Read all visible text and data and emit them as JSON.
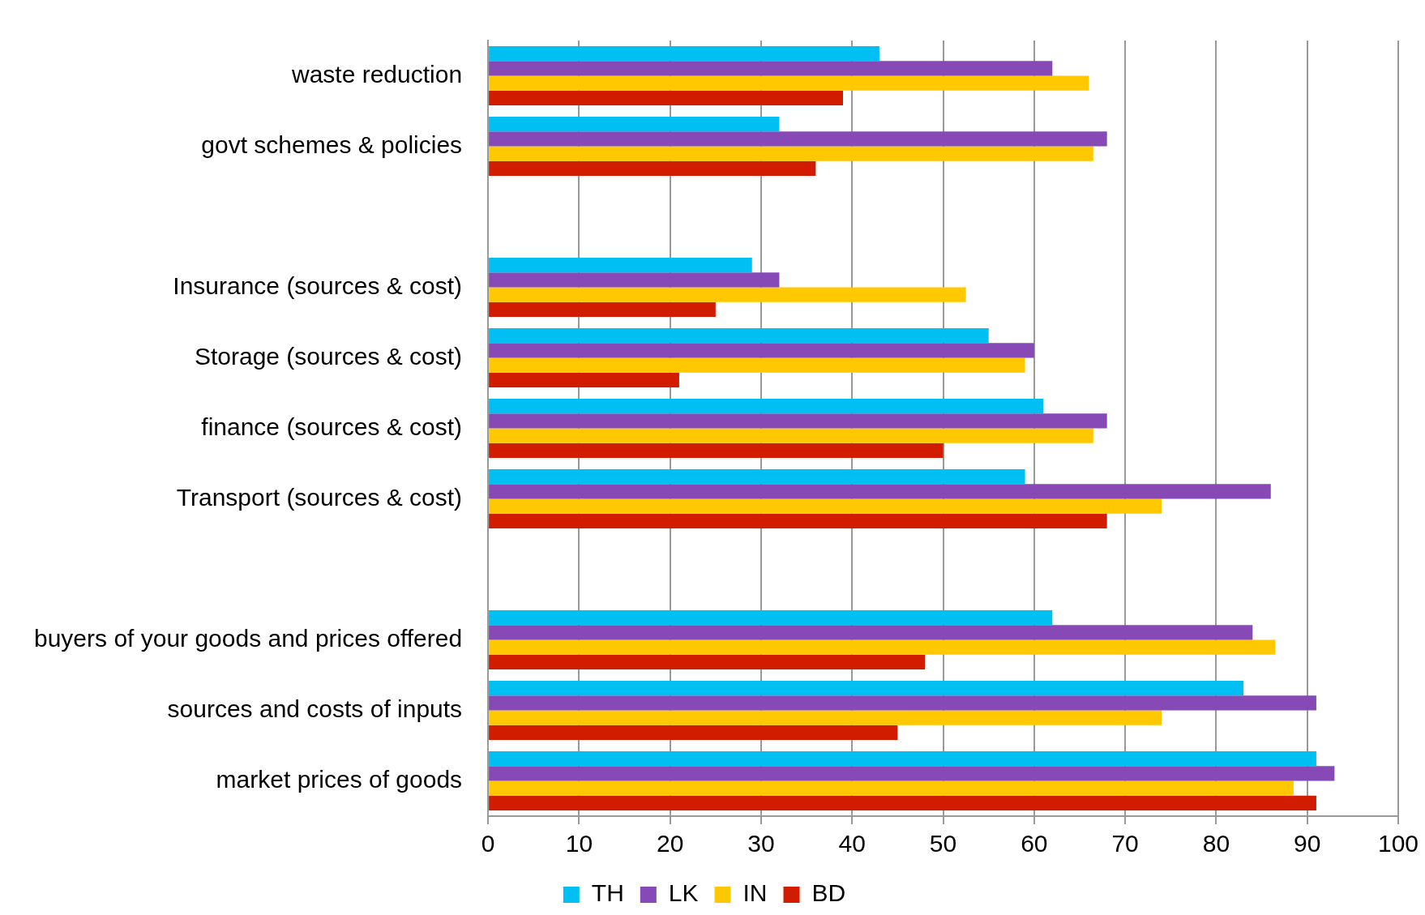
{
  "chart_data": {
    "type": "bar",
    "orientation": "horizontal",
    "categories": [
      "waste reduction",
      "govt schemes & policies",
      null,
      "Insurance (sources & cost)",
      "Storage (sources & cost)",
      "finance (sources & cost)",
      "Transport (sources & cost)",
      null,
      "buyers of your goods and prices offered",
      "sources and costs of inputs",
      "market prices of goods"
    ],
    "series": [
      {
        "name": "TH",
        "color": "#00bff3",
        "values": [
          43,
          32,
          null,
          29,
          55,
          61,
          59,
          null,
          62,
          83,
          91
        ]
      },
      {
        "name": "LK",
        "color": "#8649b5",
        "values": [
          62,
          68,
          null,
          32,
          60,
          68,
          86,
          null,
          84,
          91,
          93
        ]
      },
      {
        "name": "IN",
        "color": "#ffc800",
        "values": [
          66,
          66.5,
          null,
          52.5,
          59,
          66.5,
          74,
          null,
          86.5,
          74,
          88.5
        ]
      },
      {
        "name": "BD",
        "color": "#d21c00",
        "values": [
          39,
          36,
          null,
          25,
          21,
          50,
          68,
          null,
          48,
          45,
          91
        ]
      }
    ],
    "xlim": [
      0,
      100
    ],
    "xticks": [
      0,
      10,
      20,
      30,
      40,
      50,
      60,
      70,
      80,
      90,
      100
    ],
    "grid": "x",
    "legend": "bottom"
  }
}
